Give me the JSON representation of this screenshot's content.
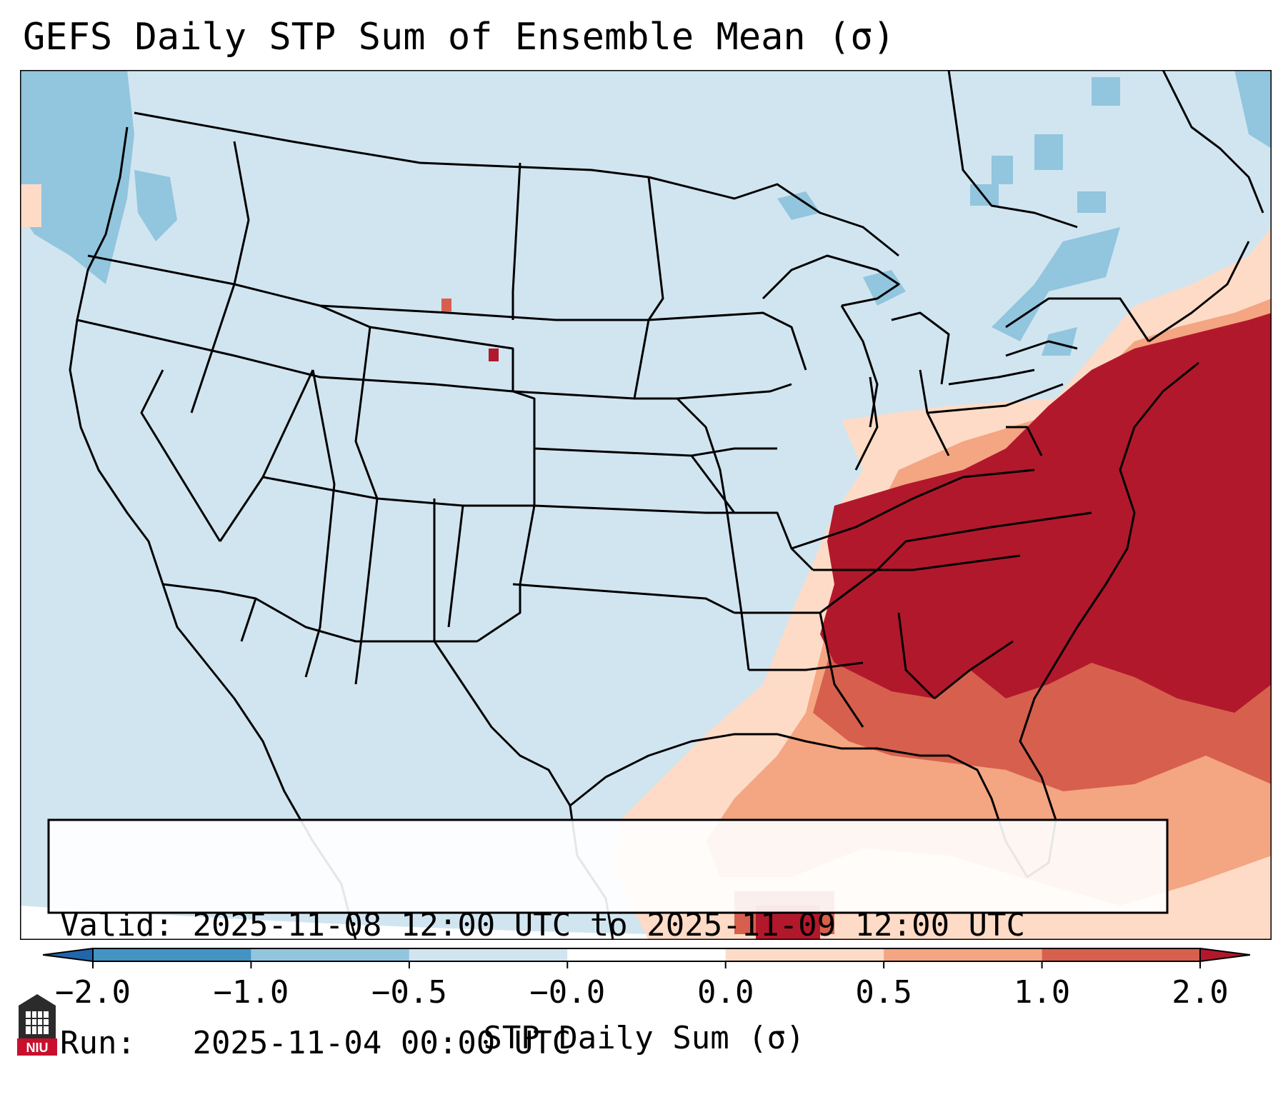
{
  "title": "GEFS Daily STP Sum of Ensemble Mean (σ)",
  "info_box": {
    "valid_label": "Valid:",
    "valid_value": "2025-11-08 12:00 UTC to 2025-11-09 12:00 UTC",
    "run_label": "Run:",
    "run_value": "2025-11-04 00:00 UTC"
  },
  "colorbar": {
    "label": "STP Daily Sum (σ)",
    "ticks": [
      "−2.0",
      "−1.0",
      "−0.5",
      "−0.0",
      "0.0",
      "0.5",
      "1.0",
      "2.0"
    ],
    "extend": "both",
    "colors": {
      "below": "#2166ac",
      "c1": "#4393c3",
      "c2": "#92c5de",
      "c3": "#d1e5f0",
      "c4": "#fddbc7",
      "c5": "#f4a582",
      "c6": "#d6604d",
      "above": "#b2182b"
    }
  },
  "logo": {
    "text": "NIU",
    "color": "#c8102e"
  }
}
